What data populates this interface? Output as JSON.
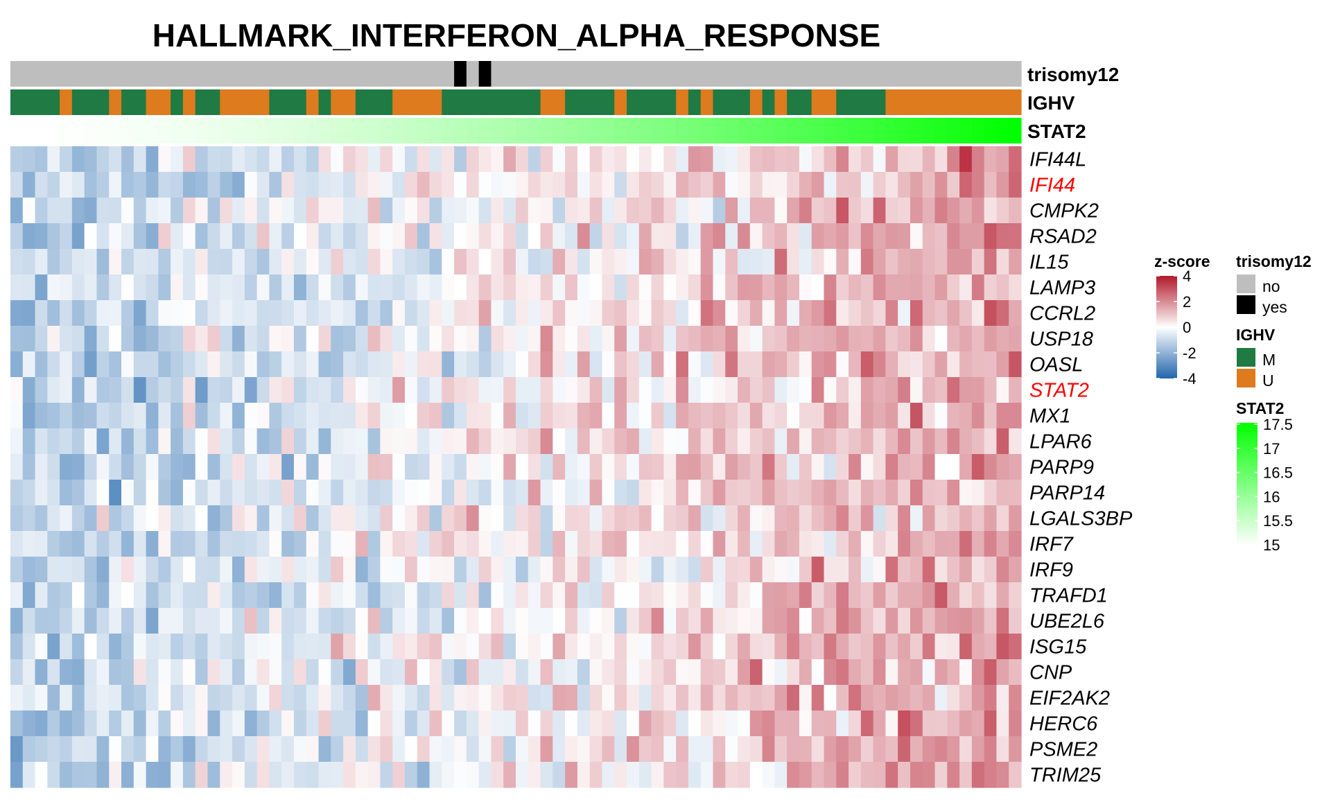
{
  "colors": {
    "trisomy_no": "#BEBEBE",
    "trisomy_yes": "#000000",
    "ighv_M": "#1F7A43",
    "ighv_U": "#DD7B1E",
    "stat2_low": "#FFFFFF",
    "stat2_high": "#00FF00",
    "z_low": "#2166AC",
    "z_mid": "#FFFFFF",
    "z_high": "#B2182B",
    "highlight_label": "#FF0000"
  },
  "chart_data": {
    "type": "heatmap",
    "title": "HALLMARK_INTERFERON_ALPHA_RESPONSE",
    "n_samples": 82,
    "annotations": [
      {
        "name": "trisomy12",
        "label": "trisomy12",
        "kind": "categorical",
        "values": "NNNNNNNNNNNNNNNNNNNNNNNNNNNNNNNNNNNNYNYNNNNNNNNNNNNNNNNNNNNNNNNNNNNNNNNNNNNNNNNNNNNN"
      },
      {
        "name": "IGHV",
        "label": "IGHV",
        "kind": "categorical",
        "values": "MMMMUMMMUMMUUMUMMUUUUMMMUMUUMMMUUUUMMMMMMMMUUMMMMUMMMMUMUMMMUMUMMUUMMMMUUUUUUUUUUU"
      },
      {
        "name": "STAT2",
        "label": "STAT2",
        "kind": "continuous",
        "range": [
          15,
          17.5
        ]
      }
    ],
    "genes": [
      {
        "name": "IFI44L",
        "highlight": false
      },
      {
        "name": "IFI44",
        "highlight": true
      },
      {
        "name": "CMPK2",
        "highlight": false
      },
      {
        "name": "RSAD2",
        "highlight": false
      },
      {
        "name": "IL15",
        "highlight": false
      },
      {
        "name": "LAMP3",
        "highlight": false
      },
      {
        "name": "CCRL2",
        "highlight": false
      },
      {
        "name": "USP18",
        "highlight": false
      },
      {
        "name": "OASL",
        "highlight": false
      },
      {
        "name": "STAT2",
        "highlight": true
      },
      {
        "name": "MX1",
        "highlight": false
      },
      {
        "name": "LPAR6",
        "highlight": false
      },
      {
        "name": "PARP9",
        "highlight": false
      },
      {
        "name": "PARP14",
        "highlight": false
      },
      {
        "name": "LGALS3BP",
        "highlight": false
      },
      {
        "name": "IRF7",
        "highlight": false
      },
      {
        "name": "IRF9",
        "highlight": false
      },
      {
        "name": "TRAFD1",
        "highlight": false
      },
      {
        "name": "UBE2L6",
        "highlight": false
      },
      {
        "name": "ISG15",
        "highlight": false
      },
      {
        "name": "CNP",
        "highlight": false
      },
      {
        "name": "EIF2AK2",
        "highlight": false
      },
      {
        "name": "HERC6",
        "highlight": false
      },
      {
        "name": "PSME2",
        "highlight": false
      },
      {
        "name": "TRIM25",
        "highlight": false
      }
    ],
    "value_range": [
      -4,
      4
    ],
    "legends": {
      "zscore": {
        "title": "z-score",
        "ticks": [
          {
            "label": "4",
            "value": 4
          },
          {
            "label": "2",
            "value": 2
          },
          {
            "label": "0",
            "value": 0
          },
          {
            "label": "-2",
            "value": -2
          },
          {
            "label": "-4",
            "value": -4
          }
        ]
      },
      "trisomy12": {
        "title": "trisomy12",
        "items": [
          {
            "label": "no",
            "color": "#BEBEBE"
          },
          {
            "label": "yes",
            "color": "#000000"
          }
        ]
      },
      "ighv": {
        "title": "IGHV",
        "items": [
          {
            "label": "M",
            "color": "#1F7A43"
          },
          {
            "label": "U",
            "color": "#DD7B1E"
          }
        ]
      },
      "stat2": {
        "title": "STAT2",
        "ticks": [
          {
            "label": "17.5",
            "value": 17.5
          },
          {
            "label": "17",
            "value": 17
          },
          {
            "label": "16.5",
            "value": 16.5
          },
          {
            "label": "16",
            "value": 16
          },
          {
            "label": "15.5",
            "value": 15.5
          },
          {
            "label": "15",
            "value": 15
          }
        ]
      }
    }
  }
}
